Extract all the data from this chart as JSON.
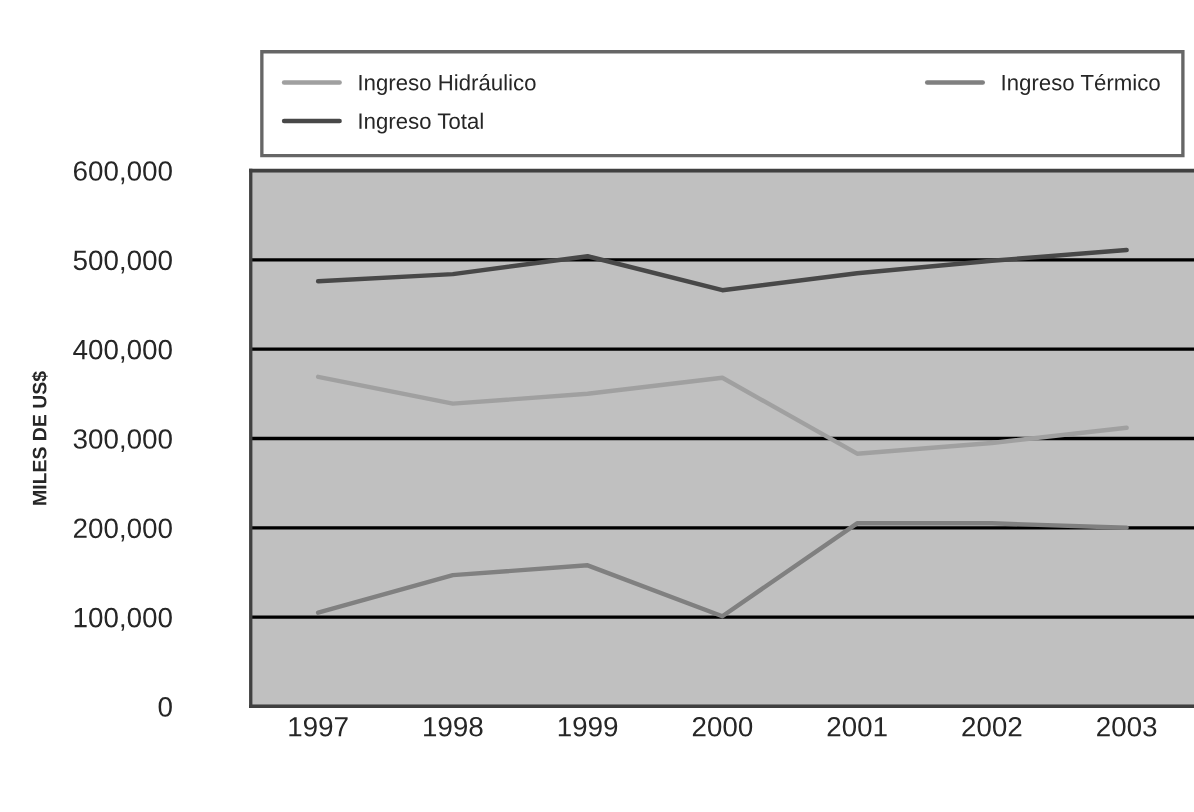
{
  "chart_data": {
    "type": "line",
    "ylabel": "MILES DE US$",
    "categories": [
      "1997",
      "1998",
      "1999",
      "2000",
      "2001",
      "2002",
      "2003"
    ],
    "series": [
      {
        "name": "Ingreso Hidráulico",
        "color": "#a0a0a0",
        "values": [
          369000,
          339000,
          350000,
          368000,
          283000,
          295000,
          312000
        ]
      },
      {
        "name": "Ingreso Térmico",
        "color": "#808080",
        "values": [
          105000,
          147000,
          158000,
          101000,
          205000,
          205000,
          200000
        ]
      },
      {
        "name": "Ingreso Total",
        "color": "#484848",
        "values": [
          476000,
          484000,
          504000,
          466000,
          485000,
          499000,
          511000
        ]
      }
    ],
    "ylim": [
      0,
      600000
    ],
    "yticks": [
      0,
      {
        "value": 100000,
        "label": "100,000"
      },
      {
        "value": 200000,
        "label": "200,000"
      },
      {
        "value": 300000,
        "label": "300,000"
      },
      {
        "value": 400000,
        "label": "400,000"
      },
      {
        "value": 500000,
        "label": "500,000"
      },
      {
        "value": 600000,
        "label": "600,000"
      }
    ],
    "grid": "y",
    "legend": "top",
    "marker": "none",
    "line_style": "solid"
  }
}
